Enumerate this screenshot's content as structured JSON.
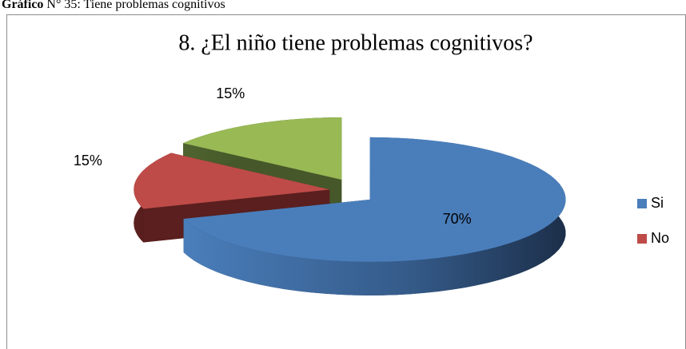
{
  "caption": {
    "label": "Gráfico",
    "text": " N° 35: Tiene problemas cognitivos"
  },
  "chart_data": {
    "type": "pie3d",
    "title": "8. ¿El niño tiene problemas cognitivos?",
    "categories": [
      "Si",
      "No",
      null
    ],
    "values": [
      70,
      15,
      15
    ],
    "value_labels": [
      "70%",
      "15%",
      "15%"
    ],
    "colors": [
      "#4a7ebb",
      "#be4b48",
      "#98b954"
    ],
    "legend": "right"
  }
}
